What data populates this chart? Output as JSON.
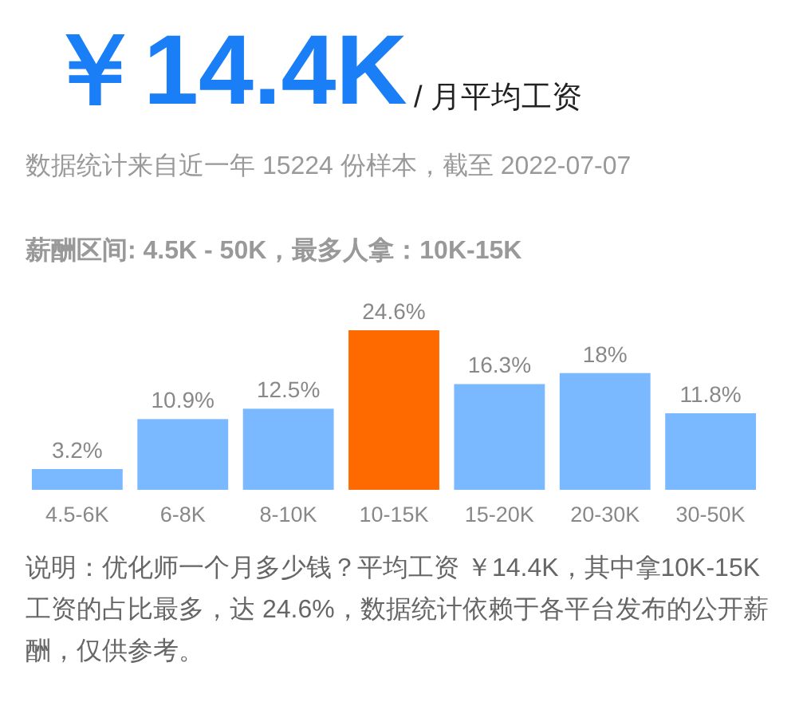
{
  "chart_data": {
    "type": "bar",
    "title": "￥14.4K",
    "subtitle": "/ 月平均工资",
    "annotations": [
      "数据统计来自近一年 15224 份样本，截至 2022-07-07",
      "薪酬区间: 4.5K - 50K，最多人拿：10K-15K",
      "说明：优化师一个月多少钱？平均工资 ￥14.4K，其中拿10K-15K 工资的占比最多，达 24.6%，数据统计依赖于各平台发布的公开薪酬，仅供参考。"
    ],
    "categories": [
      "4.5-6K",
      "6-8K",
      "8-10K",
      "10-15K",
      "15-20K",
      "20-30K",
      "30-50K"
    ],
    "values": [
      3.2,
      10.9,
      12.5,
      24.6,
      16.3,
      18,
      11.8
    ],
    "value_labels": [
      "3.2%",
      "10.9%",
      "12.5%",
      "24.6%",
      "16.3%",
      "18%",
      "11.8%"
    ],
    "colors": [
      "#7ab8ff",
      "#7ab8ff",
      "#7ab8ff",
      "#ff6a00",
      "#7ab8ff",
      "#7ab8ff",
      "#7ab8ff"
    ]
  }
}
